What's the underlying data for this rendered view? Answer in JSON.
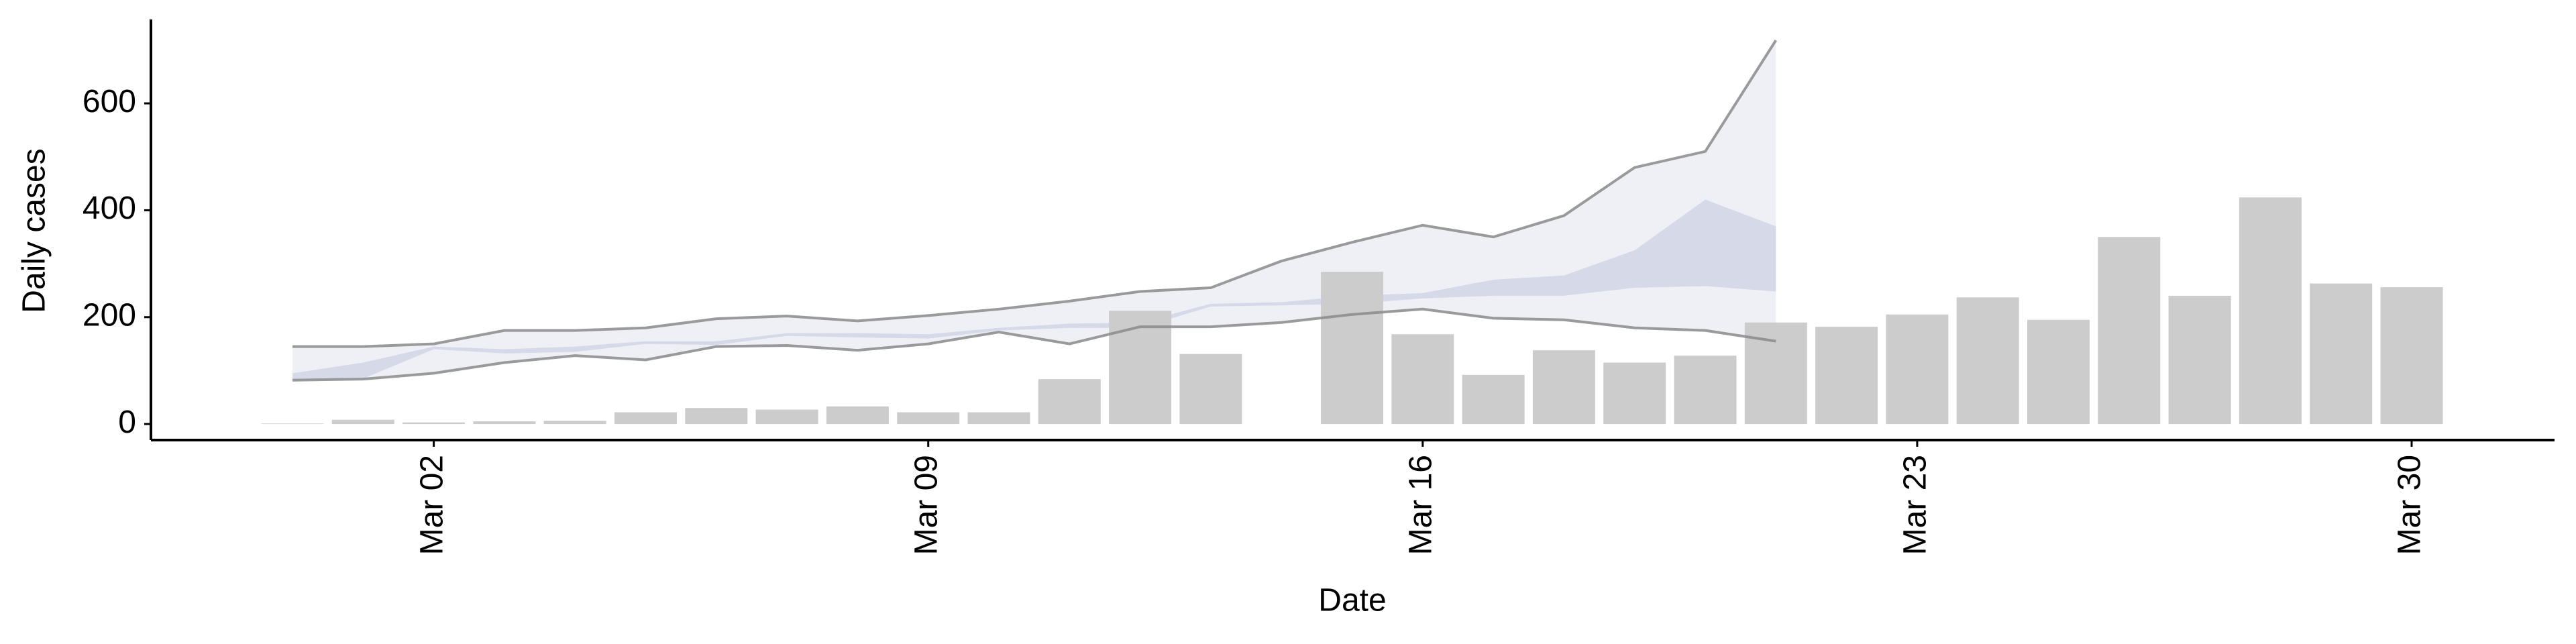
{
  "chart_data": {
    "type": "bar",
    "x_label": "Date",
    "y_label": "Daily cases",
    "categories": [
      null,
      null,
      "Mar 02",
      null,
      null,
      null,
      null,
      null,
      null,
      "Mar 09",
      null,
      null,
      null,
      null,
      null,
      null,
      "Mar 16",
      null,
      null,
      null,
      null,
      null,
      null,
      "Mar 23",
      null,
      null,
      null,
      null,
      null,
      null,
      "Mar 30"
    ],
    "values": [
      1,
      8,
      3,
      5,
      6,
      22,
      30,
      27,
      33,
      22,
      22,
      84,
      212,
      131,
      null,
      285,
      168,
      92,
      138,
      115,
      128,
      190,
      182,
      205,
      237,
      195,
      350,
      240,
      424,
      263,
      256
    ],
    "color": "#cccccc",
    "bands": [
      {
        "color": "#e9ebf3",
        "line_color": "#8a8a8a",
        "upper": [
          145,
          145,
          150,
          175,
          175,
          180,
          197,
          202,
          193,
          203,
          215,
          230,
          248,
          255,
          305,
          340,
          372,
          350,
          390,
          480,
          510,
          718
        ],
        "lower": [
          82,
          84,
          95,
          115,
          128,
          120,
          145,
          147,
          138,
          150,
          172,
          150,
          182,
          182,
          190,
          205,
          215,
          198,
          195,
          180,
          175,
          155
        ]
      },
      {
        "color": "#ccd1e3",
        "upper": [
          95,
          115,
          145,
          140,
          145,
          155,
          155,
          170,
          170,
          168,
          180,
          188,
          190,
          225,
          228,
          240,
          245,
          270,
          278,
          325,
          420,
          370
        ],
        "lower": [
          82,
          85,
          140,
          132,
          135,
          150,
          148,
          165,
          162,
          160,
          175,
          180,
          180,
          220,
          222,
          225,
          235,
          240,
          240,
          255,
          258,
          248
        ]
      }
    ],
    "ylim": [
      -30,
      757
    ],
    "yticks": [
      0,
      200,
      400,
      600
    ]
  }
}
